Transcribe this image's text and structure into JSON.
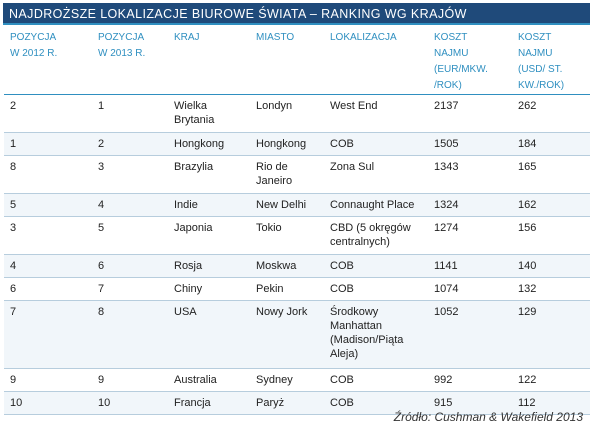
{
  "title": "NAJDROŻSZE LOKALIZACJE BIUROWE ŚWIATA – RANKING WG KRAJÓW",
  "columns": [
    [
      "POZYCJA",
      "W 2012 R."
    ],
    [
      "POZYCJA",
      "W 2013 R."
    ],
    [
      "KRAJ"
    ],
    [
      "MIASTO"
    ],
    [
      "LOKALIZACJA"
    ],
    [
      "KOSZT",
      "NAJMU",
      "(EUR/MKW.",
      "/ROK)"
    ],
    [
      "KOSZT",
      "NAJMU",
      "(USD/ ST.",
      "KW./ROK)"
    ]
  ],
  "rows": [
    {
      "pos2012": "2",
      "pos2013": "1",
      "country": "Wielka Brytania",
      "city": "Londyn",
      "location": "West End",
      "eur": "2137",
      "usd": "262"
    },
    {
      "pos2012": "1",
      "pos2013": "2",
      "country": "Hongkong",
      "city": "Hongkong",
      "location": "COB",
      "eur": "1505",
      "usd": "184"
    },
    {
      "pos2012": "8",
      "pos2013": "3",
      "country": "Brazylia",
      "city": "Rio de Janeiro",
      "location": "Zona Sul",
      "eur": "1343",
      "usd": "165"
    },
    {
      "pos2012": "5",
      "pos2013": "4",
      "country": "Indie",
      "city": "New Delhi",
      "location": "Connaught Place",
      "eur": "1324",
      "usd": "162"
    },
    {
      "pos2012": "3",
      "pos2013": "5",
      "country": "Japonia",
      "city": "Tokio",
      "location": "CBD (5 okręgów centralnych)",
      "eur": "1274",
      "usd": "156"
    },
    {
      "pos2012": "4",
      "pos2013": "6",
      "country": "Rosja",
      "city": "Moskwa",
      "location": "COB",
      "eur": "1141",
      "usd": "140"
    },
    {
      "pos2012": "6",
      "pos2013": "7",
      "country": "Chiny",
      "city": "Pekin",
      "location": "COB",
      "eur": "1074",
      "usd": "132"
    },
    {
      "pos2012": "7",
      "pos2013": "8",
      "country": "USA",
      "city": "Nowy Jork",
      "location": "Środkowy Manhattan (Madison/Piąta Aleja)",
      "eur": "1052",
      "usd": "129"
    },
    {
      "pos2012": "9",
      "pos2013": "9",
      "country": "Australia",
      "city": "Sydney",
      "location": "COB",
      "eur": "992",
      "usd": "122"
    },
    {
      "pos2012": "10",
      "pos2013": "10",
      "country": "Francja",
      "city": "Paryż",
      "location": "COB",
      "eur": "915",
      "usd": "112"
    }
  ],
  "source": "Źródło: Cushman & Wakefield 2013"
}
